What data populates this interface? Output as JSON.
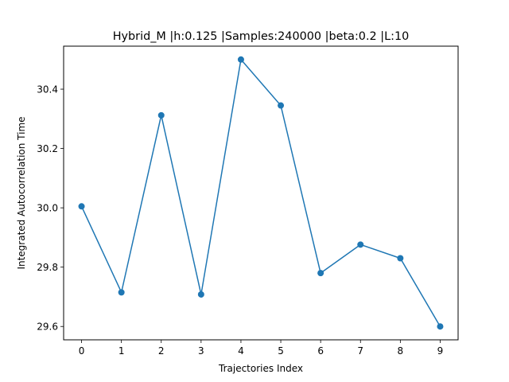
{
  "chart_data": {
    "type": "line",
    "title": "Hybrid_M |h:0.125 |Samples:240000 |beta:0.2 |L:10",
    "xlabel": "Trajectories Index",
    "ylabel": "Integrated Autocorrelation Time",
    "x": [
      0,
      1,
      2,
      3,
      4,
      5,
      6,
      7,
      8,
      9
    ],
    "series": [
      {
        "values": [
          30.005,
          29.715,
          30.312,
          29.708,
          30.5,
          30.345,
          29.78,
          29.876,
          29.83,
          29.6
        ],
        "color": "#1f77b4",
        "marker": "circle"
      }
    ],
    "xlim": [
      -0.45,
      9.45
    ],
    "ylim": [
      29.555,
      30.545
    ],
    "xticks": [
      0,
      1,
      2,
      3,
      4,
      5,
      6,
      7,
      8,
      9
    ],
    "yticks": [
      29.6,
      29.8,
      30.0,
      30.2,
      30.4
    ],
    "xtick_labels": [
      "0",
      "1",
      "2",
      "3",
      "4",
      "5",
      "6",
      "7",
      "8",
      "9"
    ],
    "ytick_labels": [
      "29.6",
      "29.8",
      "30.0",
      "30.2",
      "30.4"
    ],
    "grid": false,
    "legend": false
  }
}
